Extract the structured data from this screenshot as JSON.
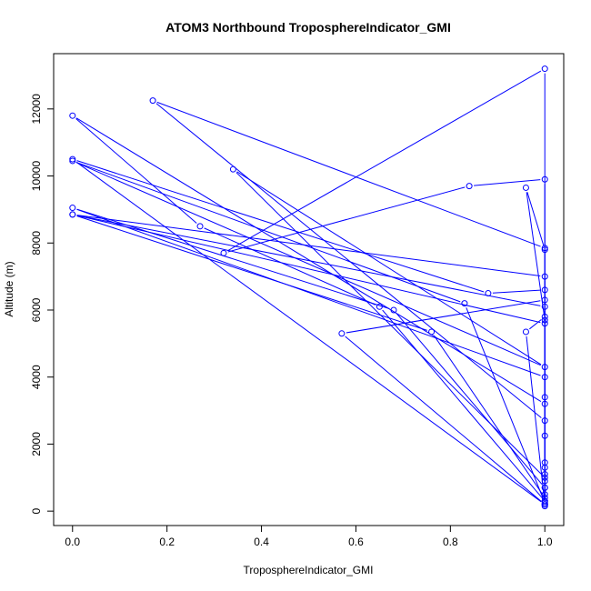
{
  "chart_data": {
    "type": "line",
    "title": "ATOM3 Northbound TroposphereIndicator_GMI",
    "xlabel": "TroposphereIndicator_GMI",
    "ylabel": "Altitude (m)",
    "xlim": [
      -0.04,
      1.04
    ],
    "ylim": [
      -430,
      13650
    ],
    "xticks": [
      0.0,
      0.2,
      0.4,
      0.6,
      0.8,
      1.0
    ],
    "xtick_labels": [
      "0.0",
      "0.2",
      "0.4",
      "0.6",
      "0.8",
      "1.0"
    ],
    "yticks": [
      0,
      2000,
      4000,
      6000,
      8000,
      10000,
      12000
    ],
    "ytick_labels": [
      "0",
      "2000",
      "4000",
      "6000",
      "8000",
      "10000",
      "12000"
    ],
    "grid": false,
    "marker": "open-circle",
    "color": "#0000ff",
    "series": [
      {
        "x": [
          1.0,
          1.0,
          1.0,
          1.0,
          1.0,
          1.0,
          1.0,
          1.0,
          1.0,
          1.0,
          0.17,
          1.0,
          1.0,
          1.0,
          0.0,
          0.27,
          0.65,
          1.0,
          1.0,
          0.32,
          0.84,
          1.0,
          1.0,
          0.0,
          0.88,
          1.0,
          1.0,
          0.57,
          1.0,
          1.0,
          0.34,
          1.0,
          0.0,
          0.83,
          1.0,
          1.0,
          0.0,
          0.68,
          1.0,
          1.0,
          0.96,
          1.0,
          1.0,
          0.0,
          0.76,
          1.0,
          1.0,
          0.0,
          1.0,
          1.0,
          0.96,
          1.0
        ],
        "y": [
          150,
          300,
          500,
          700,
          900,
          1100,
          1300,
          1450,
          2250,
          2700,
          12250,
          7850,
          3400,
          3200,
          11800,
          8500,
          6100,
          300,
          13200,
          7700,
          9700,
          9900,
          200,
          10500,
          6500,
          6600,
          6300,
          5300,
          200,
          1000,
          10200,
          4300,
          10450,
          6200,
          250,
          4000,
          9050,
          6000,
          700,
          5800,
          5350,
          200,
          5600,
          8850,
          5350,
          400,
          7000,
          8850,
          6100,
          5700,
          9650,
          7800
        ]
      }
    ]
  }
}
